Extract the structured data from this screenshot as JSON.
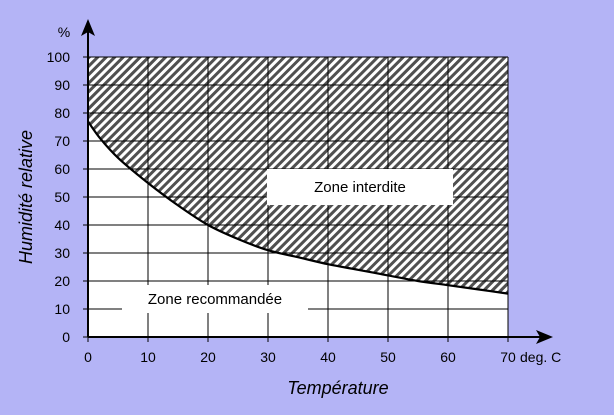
{
  "chart_data": {
    "type": "area",
    "title": "",
    "xlabel": "Température",
    "ylabel": "Humidité relative",
    "x_unit": "deg. C",
    "y_unit": "%",
    "xlim": [
      0,
      70
    ],
    "ylim": [
      0,
      100
    ],
    "x_ticks": [
      0,
      10,
      20,
      30,
      40,
      50,
      60,
      70
    ],
    "y_ticks": [
      0,
      10,
      20,
      30,
      40,
      50,
      60,
      70,
      80,
      90,
      100
    ],
    "grid": true,
    "series": [
      {
        "x": [
          0,
          2,
          5,
          10,
          15,
          20,
          25,
          30,
          35,
          40,
          45,
          50,
          55,
          60,
          65,
          70
        ],
        "values": [
          77,
          71,
          64,
          55,
          47,
          40,
          35,
          31,
          28.5,
          26,
          24,
          22,
          20,
          18.5,
          17,
          15.5
        ]
      }
    ],
    "regions": [
      {
        "label": "Zone interdite",
        "area": "above curve",
        "fill": "hatched"
      },
      {
        "label": "Zone recommandée",
        "area": "below curve",
        "fill": "white"
      }
    ],
    "colors": {
      "background": "#b4b4f6",
      "plot": "#ffffff",
      "hatch": "#505050",
      "curve": "#000000"
    }
  }
}
